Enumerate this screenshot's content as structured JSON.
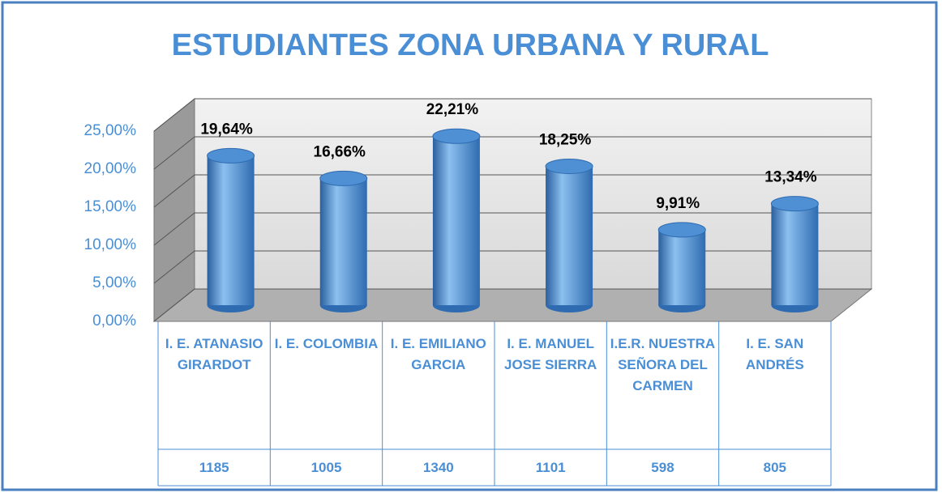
{
  "chart_data": {
    "type": "bar3d",
    "title": "ESTUDIANTES ZONA URBANA Y RURAL",
    "categories": [
      "I. E. ATANASIO GIRARDOT",
      "I. E. COLOMBIA",
      "I. E. EMILIANO GARCIA",
      "I. E. MANUEL JOSE SIERRA",
      "I.E.R. NUESTRA SEÑORA DEL CARMEN",
      "I. E. SAN ANDRÉS"
    ],
    "values": [
      19.64,
      16.66,
      22.21,
      18.25,
      9.91,
      13.34
    ],
    "value_labels": [
      "19,64%",
      "16,66%",
      "22,21%",
      "18,25%",
      "9,91%",
      "13,34%"
    ],
    "counts": [
      1185,
      1005,
      1340,
      1101,
      598,
      805
    ],
    "color": "#4a8fd6",
    "ylim": [
      0,
      25
    ],
    "yticks": [
      {
        "value": 0,
        "label": "0,00%"
      },
      {
        "value": 5,
        "label": "5,00%"
      },
      {
        "value": 10,
        "label": "10,00%"
      },
      {
        "value": 15,
        "label": "15,00%"
      },
      {
        "value": 20,
        "label": "20,00%"
      },
      {
        "value": 25,
        "label": "25,00%"
      }
    ],
    "grid": true
  }
}
